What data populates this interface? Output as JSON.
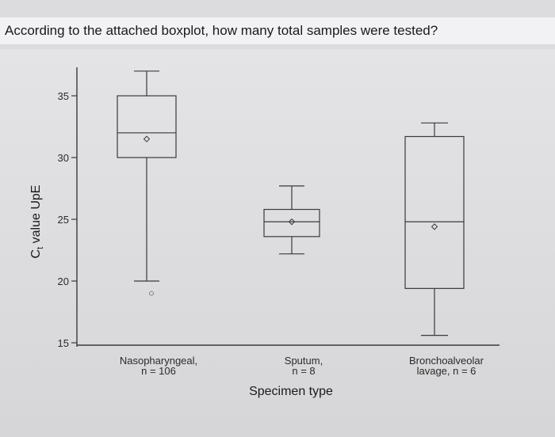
{
  "question": "According to the attached boxplot, how many total samples were tested?",
  "chart_data": {
    "type": "boxplot",
    "xlabel": "Specimen type",
    "ylabel": "C_t value UpE",
    "ylabel_main": "C",
    "ylabel_sub": "t",
    "ylabel_rest": " value UpE",
    "yticks": [
      15,
      20,
      25,
      30,
      35
    ],
    "ylim": [
      15,
      37.5
    ],
    "categories": [
      {
        "line1": "Nasopharyngeal,",
        "line2": "n = 106",
        "whisker_low": 20,
        "q1": 30,
        "median": 32,
        "q3": 35,
        "whisker_high": 37,
        "mean": 31.5,
        "outliers": [
          19
        ]
      },
      {
        "line1": "Sputum,",
        "line2": "n = 8",
        "whisker_low": 22.2,
        "q1": 23.6,
        "median": 24.8,
        "q3": 25.8,
        "whisker_high": 27.7,
        "mean": 24.8,
        "outliers": []
      },
      {
        "line1": "Bronchoalveolar",
        "line2": "lavage, n = 6",
        "whisker_low": 15.6,
        "q1": 19.4,
        "median": 24.8,
        "q3": 31.7,
        "whisker_high": 32.8,
        "mean": 24.4,
        "outliers": []
      }
    ],
    "grid": false
  }
}
